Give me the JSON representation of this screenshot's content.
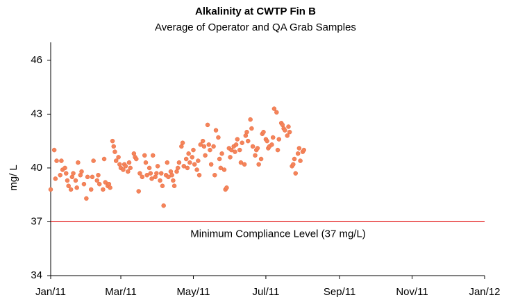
{
  "chart_data": {
    "type": "scatter",
    "title": "Alkalinity at CWTP Fin B",
    "subtitle": "Average of Operator and QA Grab Samples",
    "y_label": "mg/ L",
    "xlim": [
      0,
      365
    ],
    "xticks": [
      {
        "value": 0,
        "label": "Jan/11"
      },
      {
        "value": 59,
        "label": "Mar/11"
      },
      {
        "value": 120,
        "label": "May/11"
      },
      {
        "value": 181,
        "label": "Jul/11"
      },
      {
        "value": 243,
        "label": "Sep/11"
      },
      {
        "value": 304,
        "label": "Nov/11"
      },
      {
        "value": 365,
        "label": "Jan/12"
      }
    ],
    "ylim": [
      34,
      47
    ],
    "yticks": [
      34,
      37,
      40,
      43,
      46
    ],
    "color": "#f4845a",
    "reference_line": {
      "value": 37,
      "label": "Minimum Compliance Level (37 mg/L)",
      "color": "#e00000"
    },
    "x": [
      0,
      3,
      4,
      5,
      8,
      9,
      10,
      12,
      13,
      14,
      15,
      17,
      18,
      19,
      21,
      22,
      23,
      25,
      26,
      28,
      30,
      31,
      34,
      35,
      36,
      39,
      40,
      41,
      44,
      45,
      46,
      48,
      49,
      50,
      52,
      53,
      54,
      55,
      57,
      58,
      59,
      61,
      62,
      63,
      65,
      66,
      67,
      70,
      71,
      72,
      74,
      75,
      77,
      79,
      80,
      81,
      83,
      84,
      85,
      86,
      88,
      89,
      90,
      92,
      93,
      94,
      95,
      97,
      98,
      99,
      101,
      102,
      103,
      104,
      106,
      107,
      108,
      110,
      111,
      112,
      114,
      115,
      116,
      117,
      119,
      120,
      121,
      123,
      124,
      125,
      126,
      128,
      129,
      130,
      132,
      133,
      134,
      135,
      137,
      138,
      139,
      141,
      142,
      143,
      144,
      146,
      147,
      148,
      150,
      151,
      152,
      154,
      155,
      156,
      157,
      159,
      160,
      161,
      163,
      164,
      165,
      166,
      168,
      169,
      170,
      172,
      173,
      174,
      175,
      177,
      178,
      179,
      181,
      182,
      183,
      184,
      186,
      187,
      188,
      190,
      191,
      192,
      194,
      195,
      196,
      197,
      199,
      200,
      201,
      203,
      204,
      205,
      206,
      208,
      209,
      210,
      212,
      213
    ],
    "values": [
      38.8,
      41.0,
      39.4,
      40.4,
      39.6,
      40.4,
      39.9,
      40.0,
      39.7,
      39.3,
      39.0,
      38.8,
      39.5,
      39.7,
      39.3,
      38.9,
      40.3,
      39.6,
      39.8,
      39.1,
      38.3,
      39.5,
      38.8,
      39.5,
      40.4,
      39.3,
      39.6,
      39.1,
      38.8,
      40.5,
      39.2,
      39.0,
      39.1,
      38.9,
      41.5,
      41.2,
      40.9,
      40.4,
      40.6,
      40.2,
      40.0,
      39.9,
      40.2,
      40.1,
      39.8,
      40.3,
      40.0,
      40.8,
      40.6,
      40.5,
      38.7,
      39.7,
      39.5,
      40.7,
      40.3,
      39.6,
      40.0,
      39.7,
      39.4,
      40.7,
      39.5,
      39.7,
      40.1,
      39.3,
      39.7,
      39.0,
      37.9,
      39.6,
      40.3,
      39.5,
      39.8,
      39.6,
      39.3,
      39.0,
      39.8,
      40.0,
      40.3,
      41.2,
      41.4,
      40.1,
      40.5,
      40.0,
      40.8,
      40.3,
      40.6,
      41.0,
      40.2,
      39.9,
      40.4,
      39.6,
      41.3,
      41.5,
      41.2,
      40.7,
      42.4,
      41.3,
      41.0,
      40.2,
      41.2,
      39.6,
      42.1,
      41.7,
      40.5,
      40.0,
      40.8,
      39.9,
      38.8,
      38.9,
      41.1,
      40.6,
      41.0,
      41.2,
      40.9,
      41.3,
      41.6,
      41.0,
      40.3,
      41.4,
      40.2,
      41.8,
      42.0,
      41.5,
      42.7,
      42.2,
      41.2,
      40.7,
      41.0,
      41.1,
      40.2,
      40.5,
      41.9,
      42.0,
      41.6,
      41.5,
      41.1,
      41.2,
      41.3,
      41.7,
      43.3,
      43.1,
      41.0,
      41.6,
      42.5,
      42.4,
      42.2,
      42.1,
      41.8,
      42.3,
      42.0,
      40.1,
      40.2,
      40.5,
      39.7,
      40.8,
      41.1,
      40.4,
      40.9,
      41.0
    ]
  }
}
